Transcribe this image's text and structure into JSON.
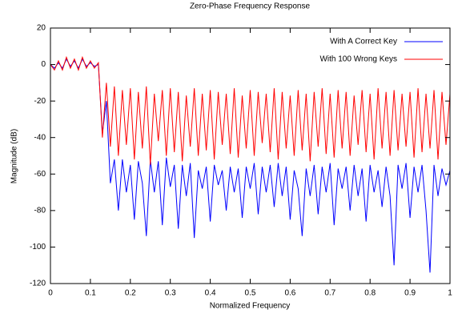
{
  "chart_data": {
    "type": "line",
    "title": "Zero-Phase Frequency Response",
    "x_label": "Normalized Frequency",
    "y_label": "Magnitude (dB)",
    "xlim": [
      0,
      1
    ],
    "ylim": [
      -120,
      20
    ],
    "xticks": [
      0,
      0.1,
      0.2,
      0.3,
      0.4,
      0.5,
      0.6,
      0.7,
      0.8,
      0.9,
      1
    ],
    "yticks": [
      -120,
      -100,
      -80,
      -60,
      -40,
      -20,
      0,
      20
    ],
    "legend": "top-right",
    "x": [
      0,
      0.01,
      0.02,
      0.03,
      0.04,
      0.05,
      0.06,
      0.07,
      0.08,
      0.09,
      0.1,
      0.11,
      0.12,
      0.13,
      0.14,
      0.15,
      0.16,
      0.17,
      0.18,
      0.19,
      0.2,
      0.21,
      0.22,
      0.23,
      0.24,
      0.25,
      0.26,
      0.27,
      0.28,
      0.29,
      0.3,
      0.31,
      0.32,
      0.33,
      0.34,
      0.35,
      0.36,
      0.37,
      0.38,
      0.39,
      0.4,
      0.41,
      0.42,
      0.43,
      0.44,
      0.45,
      0.46,
      0.47,
      0.48,
      0.49,
      0.5,
      0.51,
      0.52,
      0.53,
      0.54,
      0.55,
      0.56,
      0.57,
      0.58,
      0.59,
      0.6,
      0.61,
      0.62,
      0.63,
      0.64,
      0.65,
      0.66,
      0.67,
      0.68,
      0.69,
      0.7,
      0.71,
      0.72,
      0.73,
      0.74,
      0.75,
      0.76,
      0.77,
      0.78,
      0.79,
      0.8,
      0.81,
      0.82,
      0.83,
      0.84,
      0.85,
      0.86,
      0.87,
      0.88,
      0.89,
      0.9,
      0.91,
      0.92,
      0.93,
      0.94,
      0.95,
      0.96,
      0.97,
      0.98,
      0.99,
      1
    ],
    "series": [
      {
        "name": "With A Correct Key",
        "color": "#0000ff",
        "values": [
          0,
          -2,
          1,
          -2,
          3,
          -1,
          2,
          -2,
          3,
          -1,
          1,
          -1,
          0,
          -38,
          -20,
          -65,
          -52,
          -80,
          -52,
          -70,
          -55,
          -85,
          -53,
          -65,
          -94,
          -52,
          -70,
          -53,
          -88,
          -51,
          -67,
          -55,
          -90,
          -55,
          -72,
          -54,
          -95,
          -58,
          -68,
          -56,
          -86,
          -55,
          -66,
          -58,
          -80,
          -56,
          -70,
          -57,
          -84,
          -56,
          -68,
          -54,
          -82,
          -56,
          -70,
          -55,
          -78,
          -54,
          -72,
          -56,
          -85,
          -58,
          -68,
          -94,
          -57,
          -72,
          -55,
          -82,
          -56,
          -70,
          -54,
          -88,
          -57,
          -68,
          -56,
          -80,
          -55,
          -72,
          -57,
          -86,
          -55,
          -70,
          -58,
          -78,
          -56,
          -72,
          -110,
          -55,
          -68,
          -54,
          -84,
          -56,
          -70,
          -55,
          -80,
          -114,
          -55,
          -72,
          -57,
          -66,
          -58
        ]
      },
      {
        "name": "With 100 Wrong Keys",
        "color": "#ff0000",
        "values": [
          0,
          -3,
          2,
          -3,
          4,
          -2,
          3,
          -3,
          4,
          -2,
          2,
          -2,
          1,
          -40,
          -10,
          -45,
          -12,
          -50,
          -14,
          -44,
          -13,
          -52,
          -15,
          -46,
          -12,
          -55,
          -16,
          -42,
          -14,
          -50,
          -13,
          -48,
          -15,
          -53,
          -17,
          -45,
          -13,
          -50,
          -16,
          -47,
          -14,
          -52,
          -15,
          -44,
          -16,
          -49,
          -13,
          -51,
          -17,
          -46,
          -14,
          -50,
          -15,
          -43,
          -16,
          -48,
          -13,
          -52,
          -15,
          -46,
          -17,
          -50,
          -14,
          -47,
          -16,
          -53,
          -15,
          -45,
          -13,
          -49,
          -16,
          -51,
          -14,
          -46,
          -15,
          -50,
          -17,
          -44,
          -14,
          -48,
          -16,
          -52,
          -13,
          -46,
          -15,
          -50,
          -14,
          -47,
          -16,
          -45,
          -15,
          -51,
          -13,
          -48,
          -16,
          -46,
          -14,
          -52,
          -15,
          -44,
          -16
        ]
      }
    ]
  }
}
